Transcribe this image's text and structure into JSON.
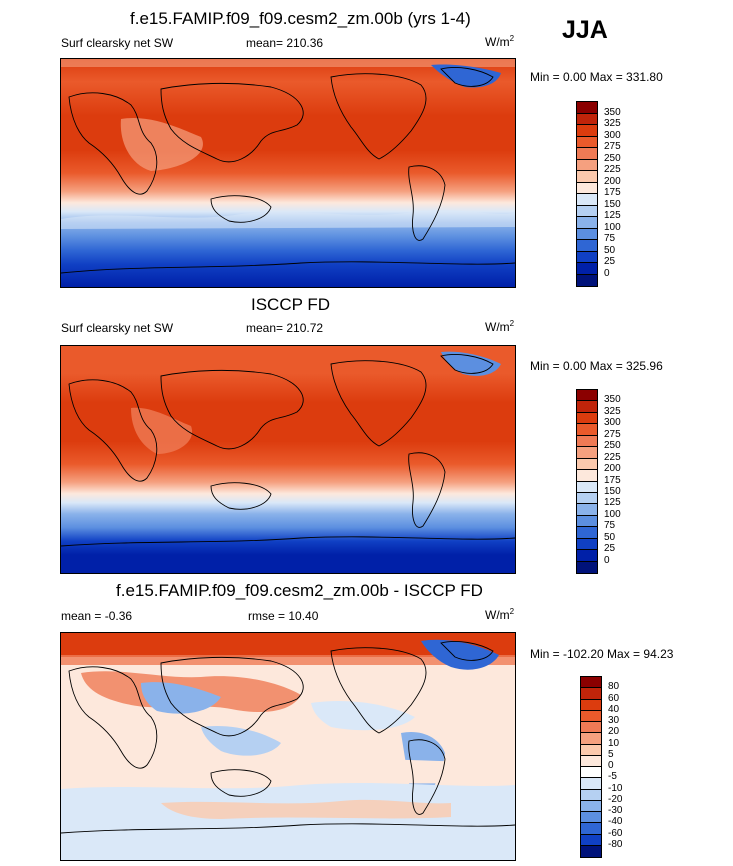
{
  "season": "JJA",
  "units_base": "W/m",
  "units_exp": "2",
  "panels": [
    {
      "title": "f.e15.FAMIP.f09_f09.cesm2_zm.00b (yrs 1-4)",
      "left_label": "Surf clearsky net SW",
      "stat": "mean= 210.36",
      "minmax": "Min =   0.00 Max = 331.80",
      "levels": [
        "350",
        "325",
        "300",
        "275",
        "250",
        "225",
        "200",
        "175",
        "150",
        "125",
        "100",
        "75",
        "50",
        "25",
        "0"
      ],
      "colors": [
        "#8b0000",
        "#c0240a",
        "#dc3c0e",
        "#ea5a2b",
        "#ef7a55",
        "#f5a07f",
        "#fbc9ad",
        "#fde8dc",
        "#dae8f8",
        "#b5d0f2",
        "#8ab2ea",
        "#5c8fe0",
        "#2f66d4",
        "#1040c4",
        "#0020a8",
        "#00127a"
      ]
    },
    {
      "title": "ISCCP FD",
      "left_label": "Surf clearsky net SW",
      "stat": "mean= 210.72",
      "minmax": "Min =   0.00 Max = 325.96",
      "levels": [
        "350",
        "325",
        "300",
        "275",
        "250",
        "225",
        "200",
        "175",
        "150",
        "125",
        "100",
        "75",
        "50",
        "25",
        "0"
      ],
      "colors": [
        "#8b0000",
        "#c0240a",
        "#dc3c0e",
        "#ea5a2b",
        "#ef7a55",
        "#f5a07f",
        "#fbc9ad",
        "#fde8dc",
        "#dae8f8",
        "#b5d0f2",
        "#8ab2ea",
        "#5c8fe0",
        "#2f66d4",
        "#1040c4",
        "#0020a8",
        "#00127a"
      ]
    },
    {
      "title": "f.e15.FAMIP.f09_f09.cesm2_zm.00b - ISCCP FD",
      "left_label": "mean =  -0.36",
      "stat": "rmse =  10.40",
      "minmax": "Min = -102.20 Max =  94.23",
      "levels": [
        "80",
        "60",
        "40",
        "30",
        "20",
        "10",
        "5",
        "0",
        "-5",
        "-10",
        "-20",
        "-30",
        "-40",
        "-60",
        "-80"
      ],
      "colors": [
        "#8b0000",
        "#c0240a",
        "#dc3c0e",
        "#ea5a2b",
        "#ef7a55",
        "#f5a07f",
        "#fbc9ad",
        "#fde8dc",
        "#ffffff",
        "#dae8f8",
        "#b5d0f2",
        "#8ab2ea",
        "#5c8fe0",
        "#2f66d4",
        "#1040c4",
        "#00127a"
      ]
    }
  ]
}
